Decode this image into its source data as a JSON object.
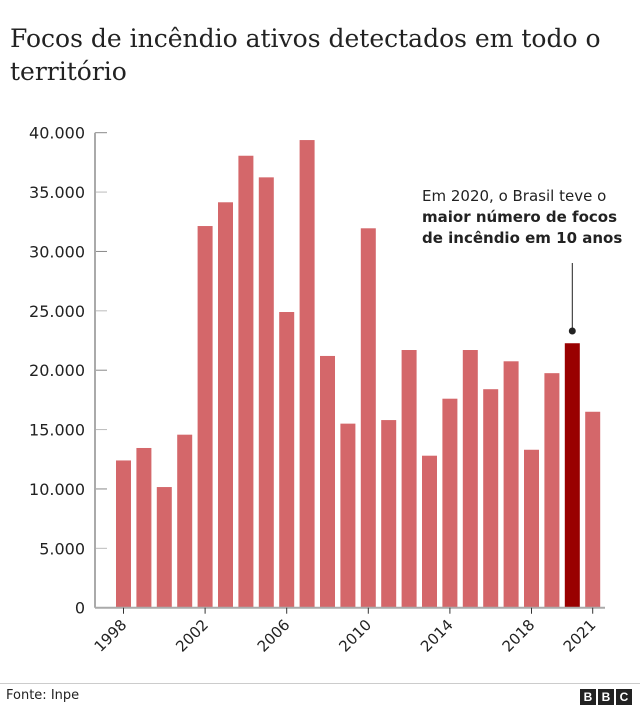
{
  "title": "Focos de incêndio ativos detectados em todo o território",
  "source": "Fonte: Inpe",
  "logo": "BBC",
  "colors": {
    "bar": "#d4676a",
    "highlight": "#990000",
    "axis": "#aaaaaa"
  },
  "annotation": {
    "line1": "Em 2020, o Brasil teve o",
    "line2": "maior número de focos",
    "line3": "de incêndio em 10 anos"
  },
  "chart_data": {
    "type": "bar",
    "categories": [
      "1998",
      "1999",
      "2000",
      "2001",
      "2002",
      "2003",
      "2004",
      "2005",
      "2006",
      "2007",
      "2008",
      "2009",
      "2010",
      "2011",
      "2012",
      "2013",
      "2014",
      "2015",
      "2016",
      "2017",
      "2018",
      "2019",
      "2020",
      "2021"
    ],
    "values": [
      12400,
      13450,
      10160,
      14570,
      32140,
      34140,
      38060,
      36240,
      24900,
      39380,
      21200,
      15500,
      31950,
      15800,
      21700,
      12800,
      17600,
      21700,
      18400,
      20750,
      13300,
      19750,
      22270,
      16500
    ],
    "highlight": "2020",
    "ylim": [
      0,
      40000
    ],
    "yticks": [
      0,
      5000,
      10000,
      15000,
      20000,
      25000,
      30000,
      35000,
      40000
    ],
    "ytick_labels": [
      "0",
      "5.000",
      "10.000",
      "15.000",
      "20.000",
      "25.000",
      "30.000",
      "35.000",
      "40.000"
    ],
    "xtick_labels": [
      "1998",
      "2002",
      "2006",
      "2010",
      "2014",
      "2018",
      "2021"
    ],
    "grid": false,
    "xlabel": "",
    "ylabel": ""
  }
}
